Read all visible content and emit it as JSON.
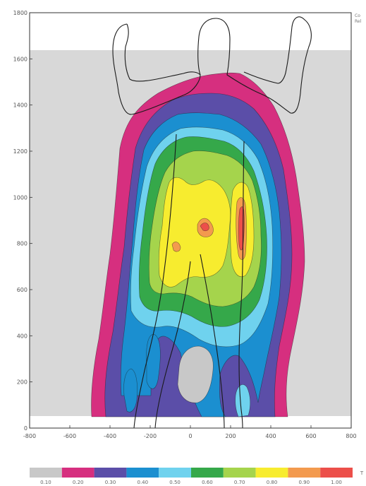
{
  "chart_data": {
    "type": "heatmap",
    "title": "",
    "xlabel": "",
    "ylabel": "",
    "xlim": [
      -800,
      800
    ],
    "ylim": [
      0,
      1800
    ],
    "x_ticks": [
      "-800",
      "-600",
      "-400",
      "-200",
      "0",
      "200",
      "400",
      "600",
      "800"
    ],
    "y_ticks": [
      "0",
      "200",
      "400",
      "600",
      "800",
      "1000",
      "1200",
      "1400",
      "1600",
      "1800"
    ],
    "corner_text": [
      "Co",
      "Rel"
    ],
    "colorbar": {
      "levels": [
        "0.10",
        "0.20",
        "0.30",
        "0.40",
        "0.50",
        "0.60",
        "0.70",
        "0.80",
        "0.90",
        "1.00"
      ],
      "colors": [
        "#c8c8c8",
        "#d62f7f",
        "#5b4ea8",
        "#1b8fd0",
        "#6fd2ee",
        "#35a84a",
        "#a5d44c",
        "#f7ec2f",
        "#f39a4e",
        "#ec4f4a"
      ],
      "end_label": "T"
    },
    "background_color": "#d8d8d8",
    "silhouette": "human figure, arms raised"
  }
}
